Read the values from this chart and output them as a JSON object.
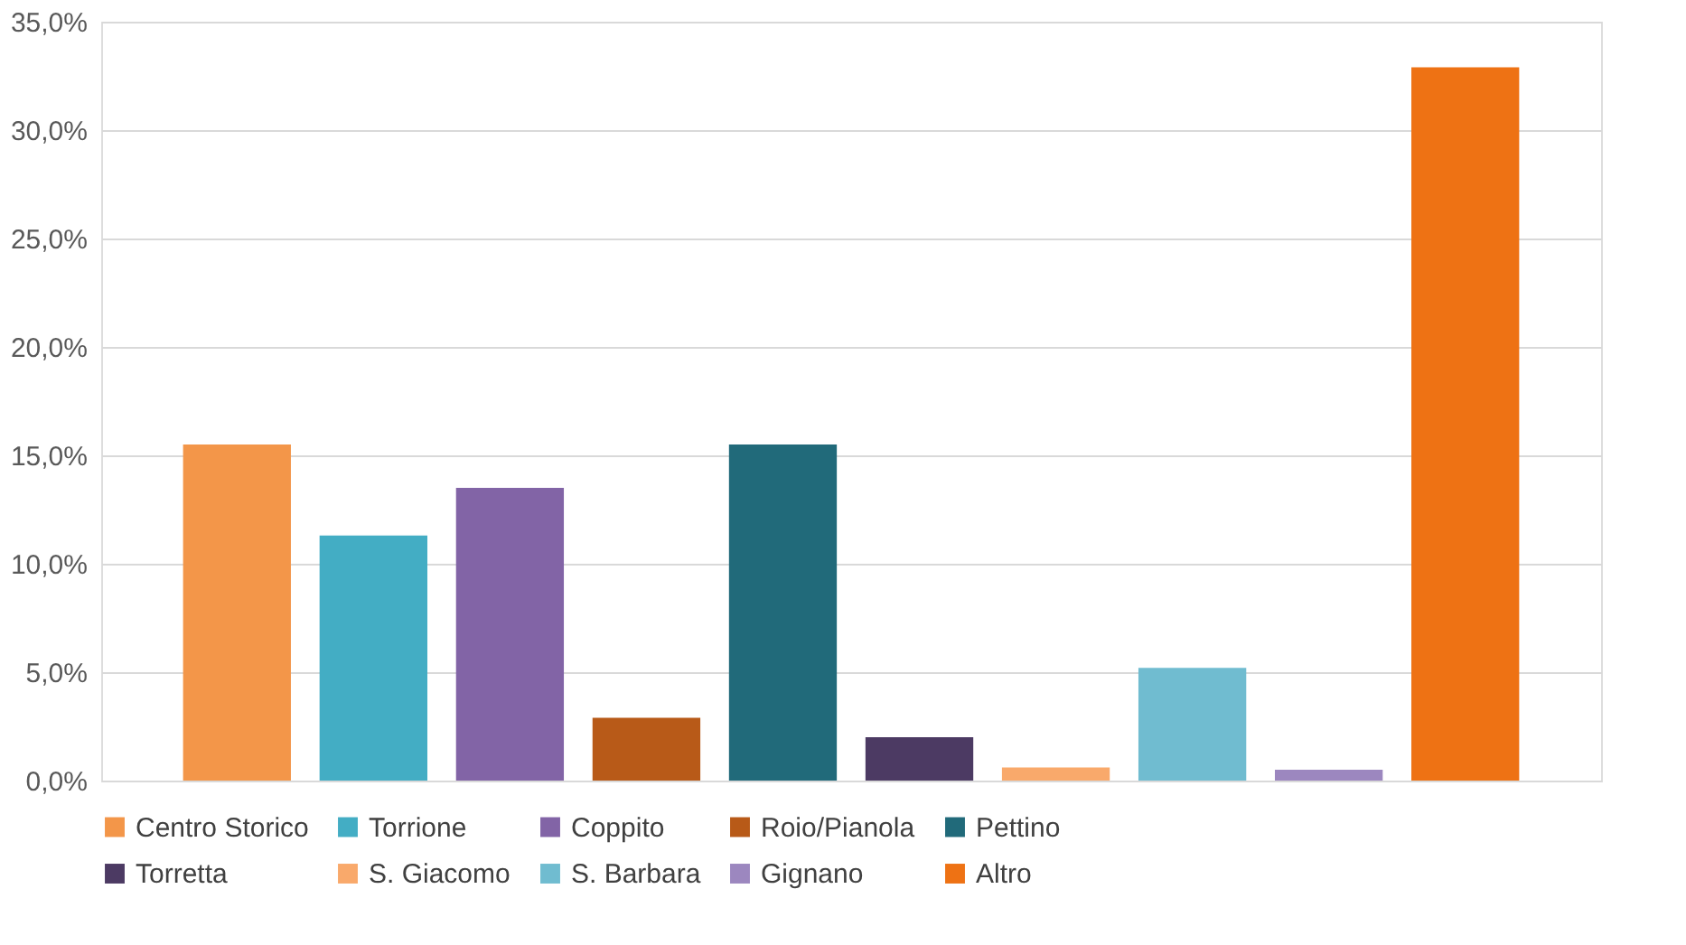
{
  "chart_data": {
    "type": "bar",
    "categories": [
      null,
      null,
      null,
      null,
      null,
      null,
      null,
      null,
      null,
      null
    ],
    "series": [
      {
        "name": "Centro Storico",
        "color": "#f39649",
        "values": [
          15.5,
          null,
          null,
          null,
          null,
          null,
          null,
          null,
          null,
          null
        ]
      },
      {
        "name": "Torrione",
        "color": "#43adc4",
        "values": [
          null,
          11.3,
          null,
          null,
          null,
          null,
          null,
          null,
          null,
          null
        ]
      },
      {
        "name": "Coppito",
        "color": "#8264a6",
        "values": [
          null,
          null,
          13.5,
          null,
          null,
          null,
          null,
          null,
          null,
          null
        ]
      },
      {
        "name": "Roio/Pianola",
        "color": "#b85a18",
        "values": [
          null,
          null,
          null,
          2.9,
          null,
          null,
          null,
          null,
          null,
          null
        ]
      },
      {
        "name": "Pettino",
        "color": "#216a7a",
        "values": [
          null,
          null,
          null,
          null,
          15.5,
          null,
          null,
          null,
          null,
          null
        ]
      },
      {
        "name": "Torretta",
        "color": "#4c3a63",
        "values": [
          null,
          null,
          null,
          null,
          null,
          2.0,
          null,
          null,
          null,
          null
        ]
      },
      {
        "name": "S. Giacomo",
        "color": "#f9a96b",
        "values": [
          null,
          null,
          null,
          null,
          null,
          null,
          0.6,
          null,
          null,
          null
        ]
      },
      {
        "name": "S. Barbara",
        "color": "#70bcd0",
        "values": [
          null,
          null,
          null,
          null,
          null,
          null,
          null,
          5.2,
          null,
          null
        ]
      },
      {
        "name": "Gignano",
        "color": "#9c87bf",
        "values": [
          null,
          null,
          null,
          null,
          null,
          null,
          null,
          null,
          0.5,
          null
        ]
      },
      {
        "name": "Altro",
        "color": "#ee7214",
        "values": [
          null,
          null,
          null,
          null,
          null,
          null,
          null,
          null,
          null,
          32.9
        ]
      }
    ],
    "ylim": [
      0,
      35
    ],
    "yticks": [
      {
        "value": 0,
        "label": "0,0%"
      },
      {
        "value": 5,
        "label": "5,0%"
      },
      {
        "value": 10,
        "label": "10,0%"
      },
      {
        "value": 15,
        "label": "15,0%"
      },
      {
        "value": 20,
        "label": "20,0%"
      },
      {
        "value": 25,
        "label": "25,0%"
      },
      {
        "value": 30,
        "label": "30,0%"
      },
      {
        "value": 35,
        "label": "35,0%"
      }
    ],
    "grid": "y",
    "legend": "bottom",
    "tick_labels": "y"
  }
}
